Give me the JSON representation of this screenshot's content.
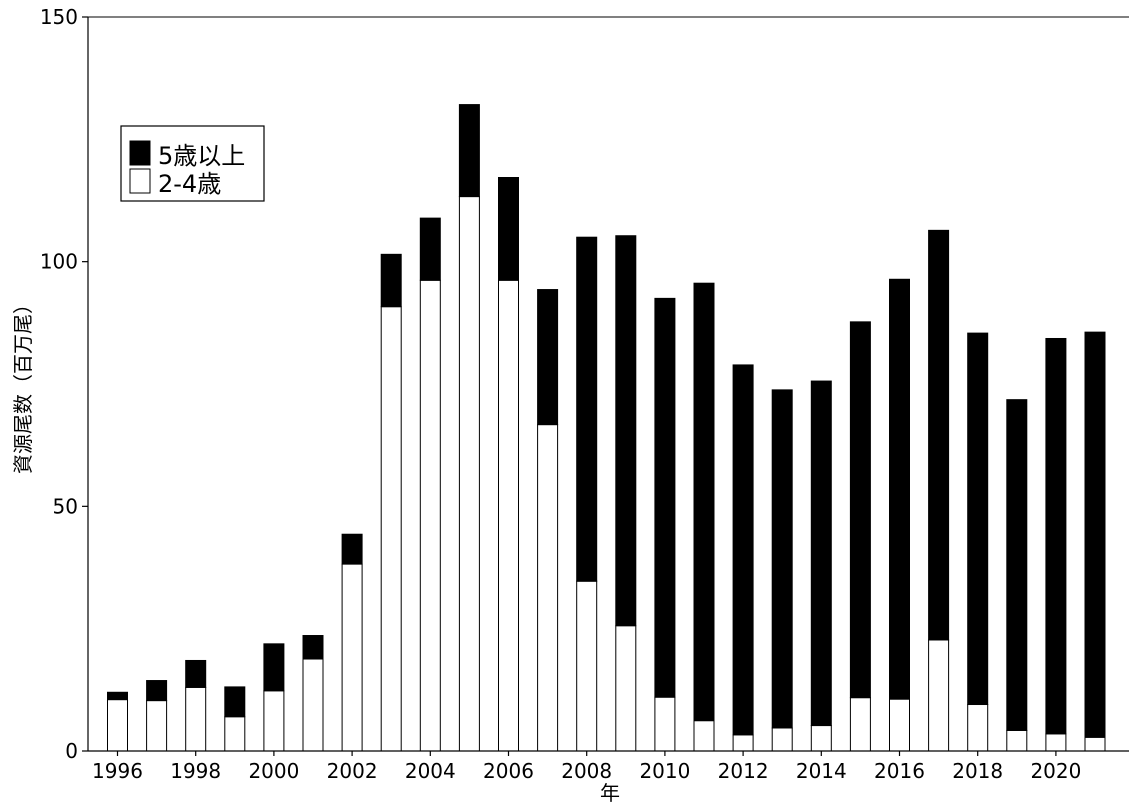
{
  "chart_data": {
    "type": "bar",
    "stacked": true,
    "xlabel": "年",
    "ylabel": "資源尾数（百万尾）",
    "ylim": [
      0,
      150
    ],
    "yticks": [
      0,
      50,
      100,
      150
    ],
    "grid": false,
    "legend_position": "top-left",
    "categories": [
      1996,
      1997,
      1998,
      1999,
      2000,
      2001,
      2002,
      2003,
      2004,
      2005,
      2006,
      2007,
      2008,
      2009,
      2010,
      2011,
      2012,
      2013,
      2014,
      2015,
      2016,
      2017,
      2018,
      2019,
      2020,
      2021
    ],
    "xticks": [
      1996,
      1998,
      2000,
      2002,
      2004,
      2006,
      2008,
      2010,
      2012,
      2014,
      2016,
      2018,
      2020
    ],
    "series": [
      {
        "name": "2-4歳",
        "color": "#ffffff",
        "values": [
          10.5,
          10.3,
          13,
          7,
          12.3,
          18.8,
          38.2,
          90.8,
          96.2,
          113.3,
          96.2,
          66.7,
          34.7,
          25.6,
          11,
          6.2,
          3.3,
          4.7,
          5.2,
          10.9,
          10.6,
          22.7,
          9.5,
          4.2,
          3.5,
          2.8
        ]
      },
      {
        "name": "5歳以上",
        "color": "#000000",
        "values": [
          1.5,
          4.1,
          5.5,
          6.1,
          9.6,
          4.8,
          6.1,
          10.7,
          12.7,
          18.8,
          21,
          27.6,
          70.3,
          79.7,
          81.5,
          89.4,
          75.6,
          69.1,
          70.4,
          76.8,
          85.8,
          83.7,
          75.9,
          67.6,
          80.8,
          82.8
        ]
      }
    ]
  },
  "legend": {
    "items": [
      {
        "label": "5歳以上",
        "color": "#000000"
      },
      {
        "label": "2-4歳",
        "color": "#ffffff"
      }
    ]
  }
}
